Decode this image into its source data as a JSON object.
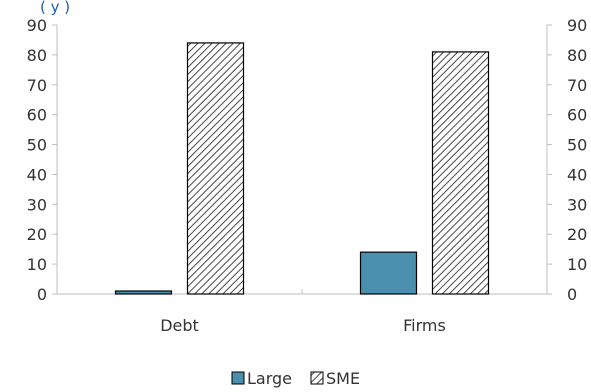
{
  "chart_data": {
    "type": "bar",
    "title": "",
    "subtitle_partial": "(                     y                )",
    "categories": [
      "Debt",
      "Firms"
    ],
    "series": [
      {
        "name": "Large",
        "values": [
          1,
          14
        ],
        "color": "#4a8fad",
        "pattern": "solid"
      },
      {
        "name": "SME",
        "values": [
          84,
          81
        ],
        "color": "#333333",
        "pattern": "diagonal-hatch"
      }
    ],
    "ylim": [
      0,
      90
    ],
    "yticks": [
      0,
      10,
      20,
      30,
      40,
      50,
      60,
      70,
      80,
      90
    ],
    "secondary_axis": true,
    "grid": false,
    "legend_position": "bottom-center",
    "xlabel": "",
    "ylabel": ""
  }
}
